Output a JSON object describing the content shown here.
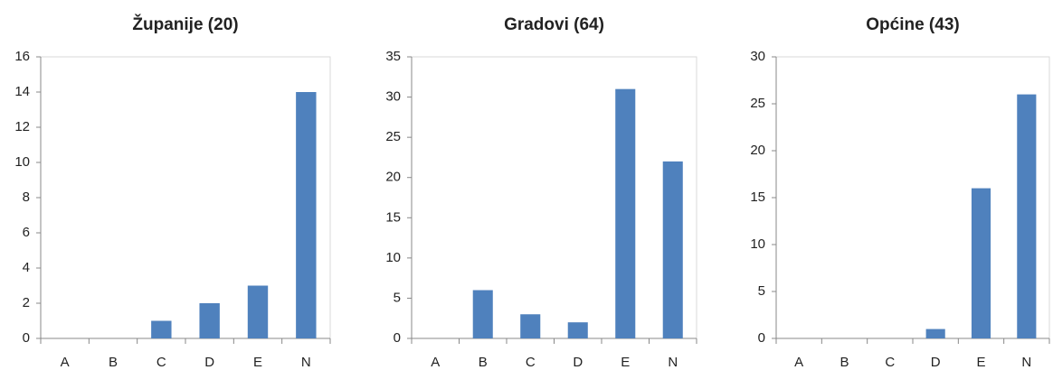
{
  "chart_data": [
    {
      "type": "bar",
      "title": "Županije (20)",
      "categories": [
        "A",
        "B",
        "C",
        "D",
        "E",
        "N"
      ],
      "values": [
        0,
        0,
        1,
        2,
        3,
        14
      ],
      "color": "#4f81bd",
      "ylim": [
        0,
        16
      ],
      "yticks": [
        0,
        2,
        4,
        6,
        8,
        10,
        12,
        14,
        16
      ],
      "grid": false
    },
    {
      "type": "bar",
      "title": "Gradovi (64)",
      "categories": [
        "A",
        "B",
        "C",
        "D",
        "E",
        "N"
      ],
      "values": [
        0,
        6,
        3,
        2,
        31,
        22
      ],
      "color": "#4f81bd",
      "ylim": [
        0,
        35
      ],
      "yticks": [
        0,
        5,
        10,
        15,
        20,
        25,
        30,
        35
      ],
      "grid": false
    },
    {
      "type": "bar",
      "title": "Općine (43)",
      "categories": [
        "A",
        "B",
        "C",
        "D",
        "E",
        "N"
      ],
      "values": [
        0,
        0,
        0,
        1,
        16,
        26
      ],
      "color": "#4f81bd",
      "ylim": [
        0,
        30
      ],
      "yticks": [
        0,
        5,
        10,
        15,
        20,
        25,
        30
      ],
      "grid": false
    }
  ]
}
